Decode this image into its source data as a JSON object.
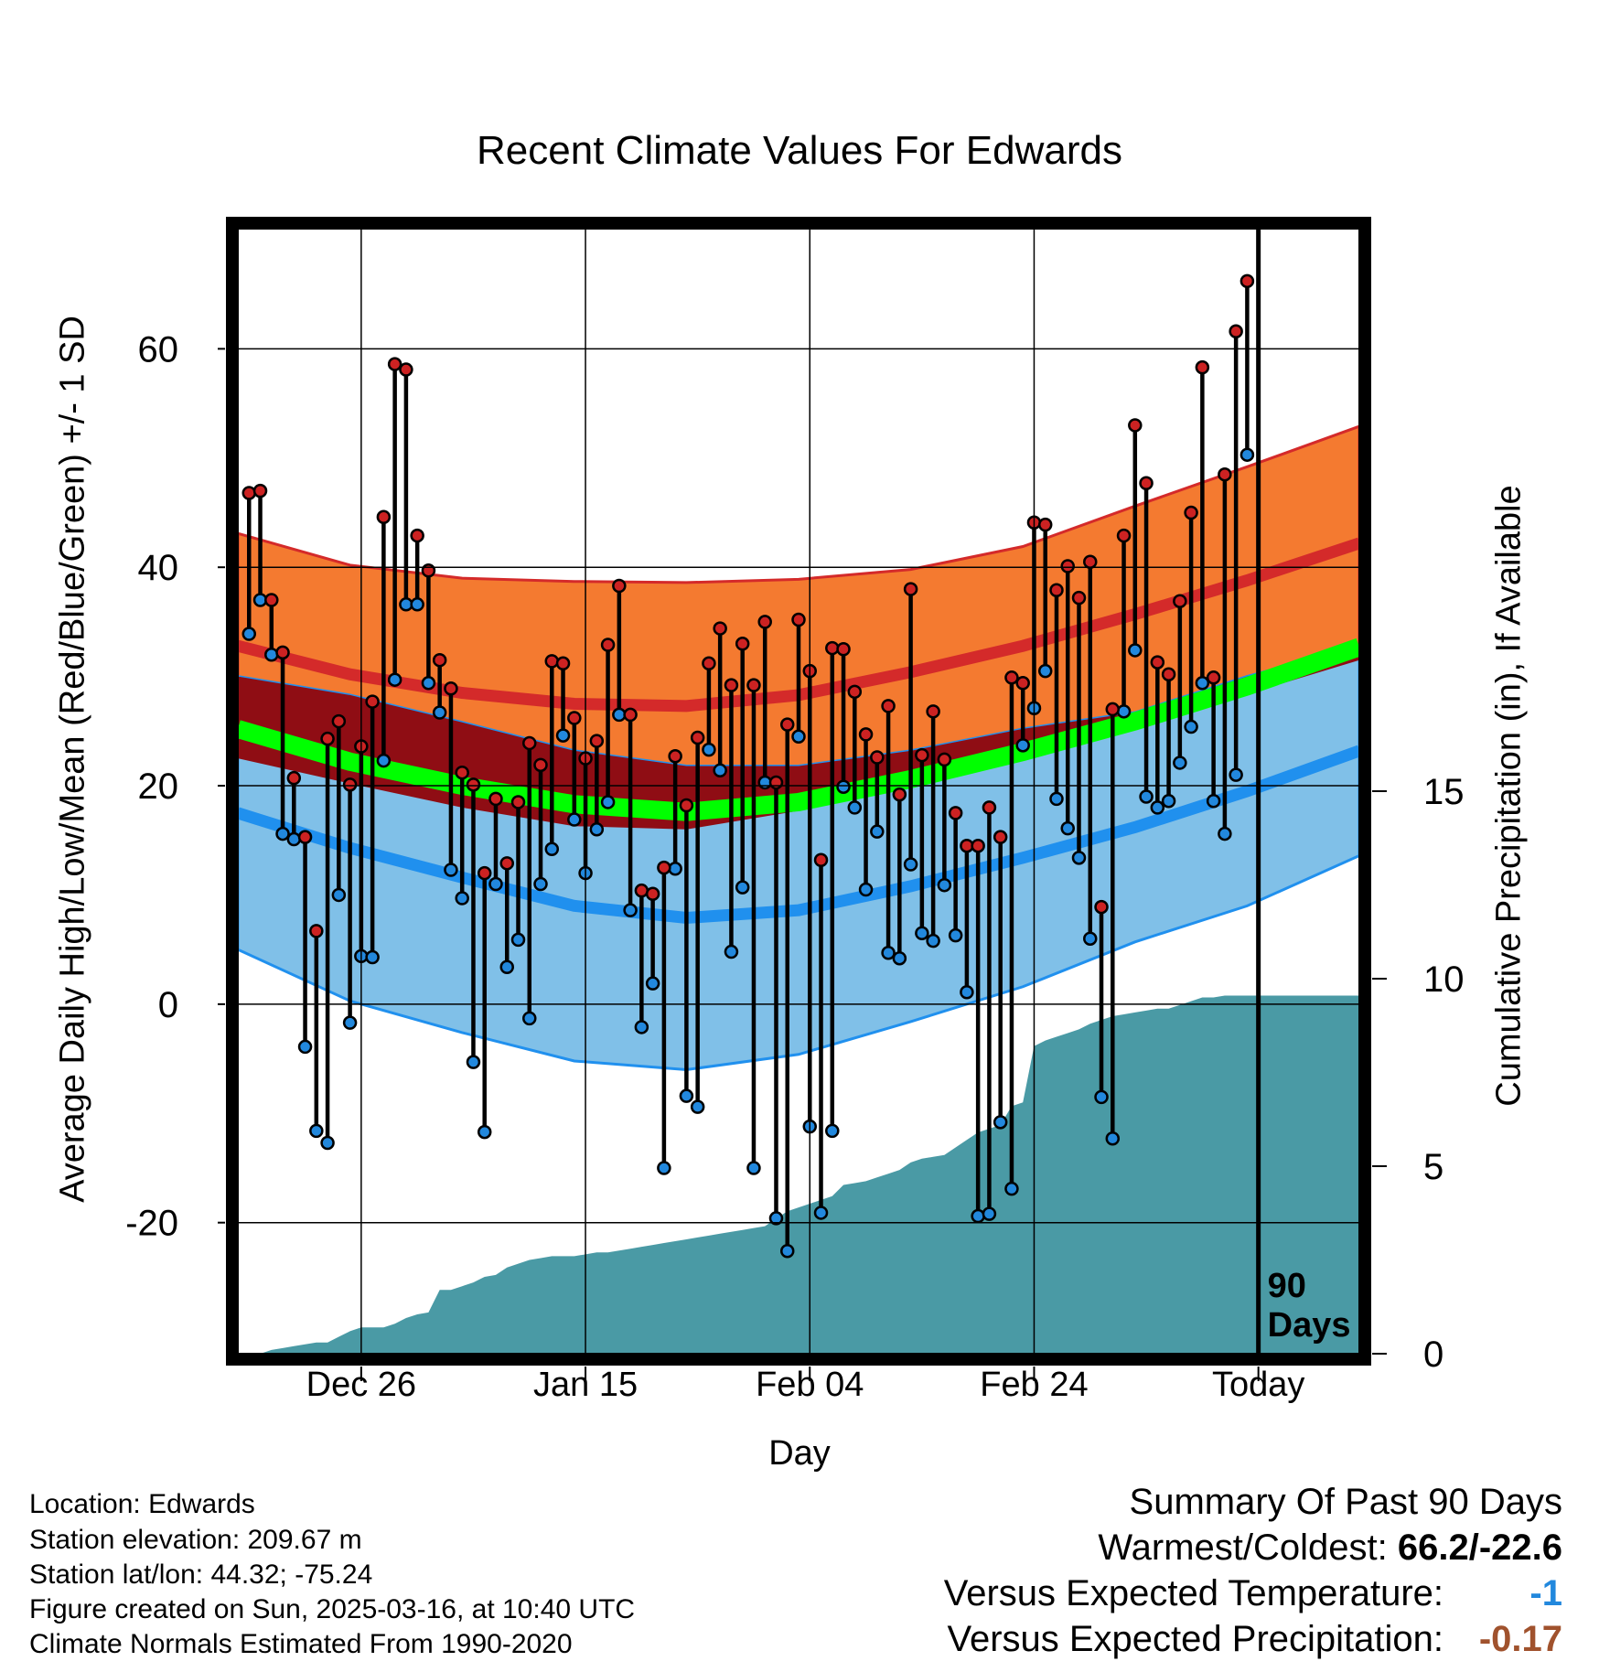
{
  "chart_data": {
    "type": "line",
    "title": "Recent Climate Values For Edwards",
    "xlabel": "Day",
    "ylabel": "Average Daily High/Low/Mean (Red/Blue/Green) +/- 1 SD",
    "y2label": "Cumulative Precipitation (in), If Available",
    "ylim": [
      -32,
      71
    ],
    "y2lim": [
      0,
      30
    ],
    "yticks": [
      -20,
      0,
      20,
      40,
      60
    ],
    "y2ticks": [
      0,
      5,
      10,
      15
    ],
    "xlim": [
      "2024-12-15",
      "2025-03-25"
    ],
    "xticks": [
      "Dec 26",
      "Jan 15",
      "Feb 04",
      "Feb 24",
      "Today"
    ],
    "xtick_dates": [
      "2024-12-26",
      "2025-01-15",
      "2025-02-04",
      "2025-02-24",
      "2025-03-16"
    ],
    "today_marker": {
      "date": "2025-03-16",
      "label": "90\nDays"
    },
    "grid": true,
    "colors": {
      "high_band": "#f47a30",
      "high_line": "#d42a2a",
      "overlap_band": "#8f0d14",
      "mean_band": "#00ff00",
      "low_band": "#80c0e8",
      "low_line": "#2090ee",
      "precip": "#4a9aa5",
      "high_point": "#cc2222",
      "low_point": "#2288dd"
    },
    "normals": {
      "dates": [
        "2024-12-15",
        "2024-12-25",
        "2025-01-04",
        "2025-01-14",
        "2025-01-24",
        "2025-02-03",
        "2025-02-13",
        "2025-02-23",
        "2025-03-05",
        "2025-03-15",
        "2025-03-25"
      ],
      "high_mean": [
        32.8,
        30.2,
        28.5,
        27.5,
        27.3,
        28.3,
        30.4,
        32.8,
        35.7,
        38.8,
        42.2
      ],
      "high_sd": [
        10.3,
        10.0,
        10.5,
        11.2,
        11.3,
        10.6,
        9.4,
        9.1,
        9.9,
        10.4,
        10.7
      ],
      "low_mean": [
        17.5,
        14.3,
        11.6,
        9.0,
        7.9,
        8.6,
        10.8,
        13.4,
        16.2,
        19.5,
        23.2
      ],
      "low_sd": [
        12.5,
        14.0,
        14.2,
        14.2,
        13.9,
        13.2,
        12.4,
        11.8,
        10.5,
        10.5,
        9.6
      ],
      "mean": [
        25.2,
        22.2,
        20.0,
        18.3,
        17.6,
        18.5,
        20.6,
        23.1,
        25.9,
        29.1,
        32.7
      ]
    },
    "series": [
      {
        "name": "High",
        "start_date": "2024-12-16",
        "values": [
          46.8,
          47.0,
          37.0,
          32.2,
          20.7,
          15.3,
          6.7,
          24.3,
          25.9,
          20.1,
          23.6,
          27.7,
          44.6,
          58.6,
          58.1,
          42.9,
          39.7,
          31.5,
          28.9,
          21.2,
          20.1,
          12.0,
          18.8,
          12.9,
          18.5,
          23.9,
          21.9,
          31.4,
          31.2,
          26.2,
          22.5,
          24.1,
          32.9,
          38.3,
          26.5,
          10.4,
          10.1,
          12.5,
          22.7,
          18.2,
          24.4,
          31.2,
          34.4,
          29.2,
          33.0,
          29.2,
          35.0,
          20.3,
          25.6,
          35.2,
          30.5,
          13.2,
          32.6,
          32.5,
          28.6,
          24.7,
          22.6,
          27.3,
          19.2,
          38.0,
          22.8,
          26.8,
          22.4,
          17.5,
          14.5,
          14.5,
          18.0,
          15.3,
          29.9,
          29.4,
          44.1,
          43.9,
          37.9,
          40.1,
          37.2,
          40.5,
          8.9,
          27.0,
          42.9,
          53.0,
          47.7,
          31.3,
          30.2,
          36.9,
          45.0,
          58.3,
          29.9,
          48.5,
          61.6,
          66.2
        ]
      },
      {
        "name": "Low",
        "start_date": "2024-12-16",
        "values": [
          33.9,
          37.0,
          32.0,
          15.6,
          15.1,
          -3.9,
          -11.6,
          -12.7,
          10.0,
          -1.7,
          4.4,
          4.3,
          22.3,
          29.7,
          36.6,
          36.6,
          29.4,
          26.7,
          12.3,
          9.7,
          -5.3,
          -11.7,
          11.0,
          3.4,
          5.9,
          -1.3,
          11.0,
          14.2,
          24.6,
          16.9,
          12.0,
          16.0,
          18.5,
          26.5,
          8.6,
          -2.1,
          1.9,
          -15.0,
          12.4,
          -8.4,
          -9.4,
          23.3,
          21.4,
          4.8,
          10.7,
          -15.0,
          20.3,
          -19.6,
          -22.6,
          24.5,
          -11.2,
          -19.1,
          -11.6,
          19.9,
          18.0,
          10.5,
          15.8,
          4.7,
          4.2,
          12.8,
          6.5,
          5.8,
          10.9,
          6.3,
          1.1,
          -19.4,
          -19.2,
          -10.8,
          -16.9,
          23.7,
          27.1,
          30.5,
          18.8,
          16.1,
          13.4,
          6.0,
          -8.5,
          -12.3,
          26.8,
          32.4,
          19.0,
          18.0,
          18.6,
          22.1,
          25.4,
          29.4,
          18.6,
          15.6,
          21.0,
          50.3
        ]
      },
      {
        "name": "Cumulative Precipitation",
        "start_date": "2024-12-16",
        "values": [
          0.0,
          0.0,
          0.1,
          0.15,
          0.2,
          0.25,
          0.3,
          0.3,
          0.45,
          0.6,
          0.7,
          0.7,
          0.7,
          0.8,
          0.95,
          1.05,
          1.1,
          1.7,
          1.7,
          1.8,
          1.9,
          2.05,
          2.1,
          2.3,
          2.4,
          2.5,
          2.55,
          2.6,
          2.6,
          2.6,
          2.65,
          2.7,
          2.7,
          2.75,
          2.8,
          2.85,
          2.9,
          2.95,
          3.0,
          3.05,
          3.1,
          3.15,
          3.2,
          3.25,
          3.3,
          3.35,
          3.4,
          3.6,
          3.8,
          3.9,
          4.0,
          4.1,
          4.2,
          4.5,
          4.55,
          4.6,
          4.7,
          4.8,
          4.9,
          5.1,
          5.2,
          5.25,
          5.3,
          5.5,
          5.7,
          5.9,
          6.0,
          6.1,
          6.6,
          6.7,
          8.2,
          8.35,
          8.45,
          8.55,
          8.65,
          8.8,
          8.9,
          9.0,
          9.05,
          9.1,
          9.15,
          9.2,
          9.2,
          9.3,
          9.4,
          9.5,
          9.5,
          9.55,
          9.55,
          9.55
        ]
      }
    ]
  },
  "info": {
    "location": "Location: Edwards",
    "elevation": "Station elevation: 209.67 m",
    "latlon": "Station lat/lon: 44.32; -75.24",
    "created": "Figure created on Sun, 2025-03-16, at 10:40 UTC",
    "normals": "Climate Normals Estimated From 1990-2020"
  },
  "summary": {
    "heading": "Summary Of Past 90 Days",
    "warm_cold_label": "Warmest/Coldest:",
    "warm_cold_value": "66.2/-22.6",
    "temp_label": "Versus Expected Temperature:",
    "temp_value": "-1",
    "temp_color": "#2288dd",
    "precip_label": "Versus Expected Precipitation:",
    "precip_value": "-0.17",
    "precip_color": "#a0522d"
  }
}
